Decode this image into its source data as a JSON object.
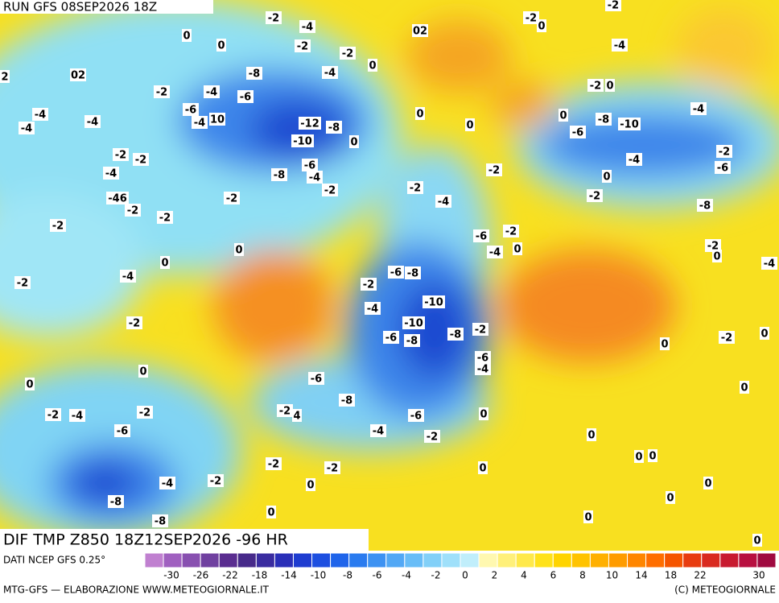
{
  "header": {
    "run": "RUN GFS 08SEP2026 18Z"
  },
  "map": {
    "title": "DIF TMP Z850 18Z12SEP2026 -96 HR",
    "contour_labels": [
      "-2",
      "-4",
      "0",
      "0",
      "-2",
      "-2",
      "0",
      "02",
      "-2",
      "0",
      "-2",
      "-4",
      "2",
      "02",
      "-8",
      "-4",
      "-2",
      "-4",
      "-6",
      "-6",
      "-4",
      "10",
      "-12",
      "-8",
      "-10",
      "-4",
      "-4",
      "-4",
      "-2",
      "0",
      "-4",
      "-8",
      "-10",
      "0",
      "-6",
      "0",
      "0",
      "0",
      "-2",
      "-2",
      "-4",
      "-8",
      "-6",
      "-4",
      "-2",
      "-2",
      "-2",
      "0",
      "-4",
      "-2",
      "-6",
      "-2",
      "-4",
      "-2",
      "-8",
      "-46",
      "-2",
      "-2",
      "-2",
      "0",
      "0",
      "-6",
      "-2",
      "-4",
      "0",
      "-2",
      "0",
      "-4",
      "-2",
      "-4",
      "-6",
      "-8",
      "-2",
      "-4",
      "-10",
      "-2",
      "-10",
      "-6",
      "-8",
      "-8",
      "-2",
      "-2",
      "0",
      "0",
      "-6",
      "-4",
      "0",
      "0",
      "-6",
      "-8",
      "0",
      "-2",
      "4",
      "-6",
      "0",
      "-2",
      "-4",
      "-2",
      "-6",
      "-4",
      "-2",
      "0",
      "-2",
      "-2",
      "0",
      "0",
      "0",
      "-4",
      "-2",
      "0",
      "0",
      "-8",
      "0",
      "-8",
      "0",
      "0",
      "0"
    ]
  },
  "footer": {
    "source": "DATI NCEP GFS 0.25°",
    "credit": "MTG-GFS — ELABORAZIONE WWW.METEOGIORNALE.IT",
    "copyright": "(C) METEOGIORNALE"
  },
  "colorbar": {
    "labels": [
      "-30",
      "-26",
      "-22",
      "-18",
      "-14",
      "-10",
      "-8",
      "-6",
      "-4",
      "-2",
      "0",
      "2",
      "4",
      "6",
      "8",
      "10",
      "14",
      "18",
      "22",
      "30"
    ],
    "colors": [
      "#c080d0",
      "#a060c0",
      "#8850b0",
      "#7040a0",
      "#5a2d90",
      "#472a8a",
      "#3a2ca0",
      "#2a2fb8",
      "#1e3cd0",
      "#1d4fe0",
      "#1f64ea",
      "#2a7bef",
      "#3d92f2",
      "#52a8f5",
      "#68bdf7",
      "#82d0f8",
      "#9fe0fa",
      "#c0eefb",
      "#fff8b0",
      "#fff07a",
      "#ffe94a",
      "#ffe21a",
      "#ffd400",
      "#ffc300",
      "#ffb000",
      "#ff9c00",
      "#ff8600",
      "#ff6e00",
      "#f55500",
      "#e83c10",
      "#d92a20",
      "#c81a30",
      "#b81040",
      "#a00a40"
    ]
  }
}
